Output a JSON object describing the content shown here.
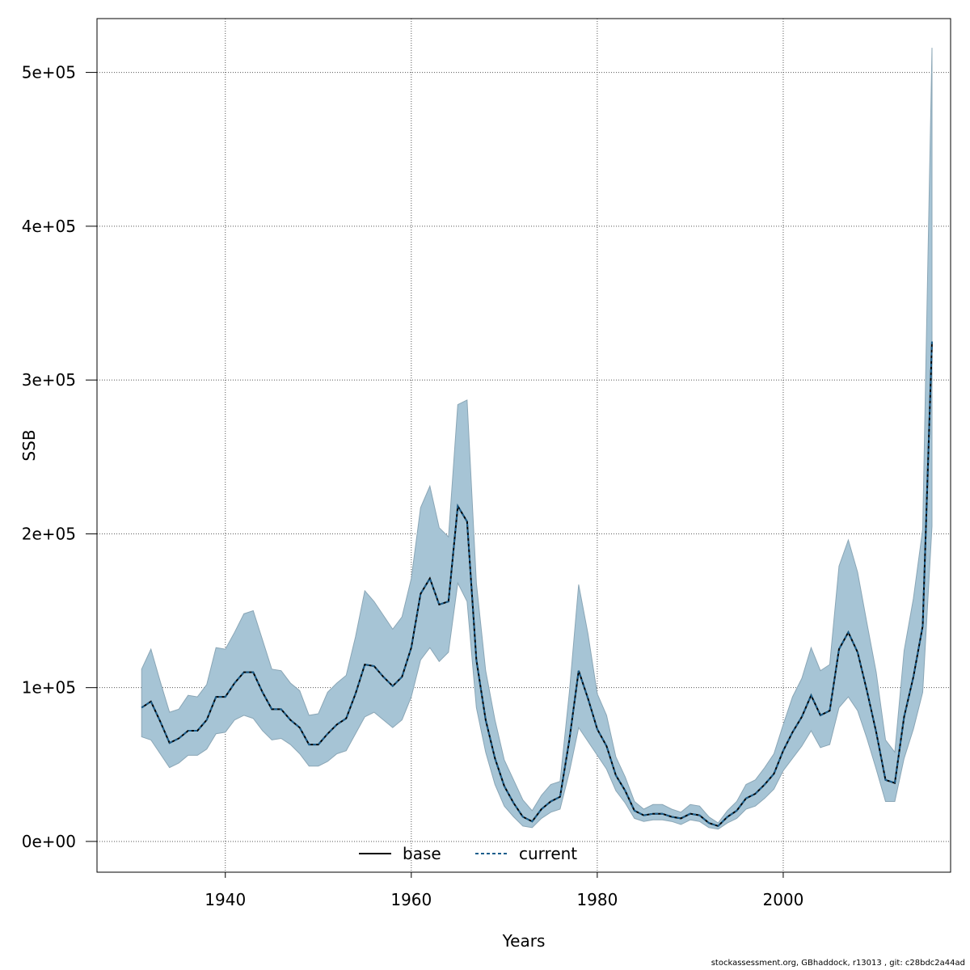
{
  "chart_data": {
    "type": "line",
    "title": "",
    "xlabel": "Years",
    "ylabel": "SSB",
    "xlim": [
      1926.2,
      2018.0
    ],
    "ylim": [
      -20000,
      535000
    ],
    "x_ticks": [
      1940,
      1960,
      1980,
      2000
    ],
    "x_tick_labels": [
      "1940",
      "1960",
      "1980",
      "2000"
    ],
    "y_ticks": [
      0,
      100000,
      200000,
      300000,
      400000,
      500000
    ],
    "y_tick_labels": [
      "0e+00",
      "1e+05",
      "2e+05",
      "3e+05",
      "4e+05",
      "5e+05"
    ],
    "grid": true,
    "legend_position": "bottom",
    "x": [
      1931,
      1932,
      1933,
      1934,
      1935,
      1936,
      1937,
      1938,
      1939,
      1940,
      1941,
      1942,
      1943,
      1944,
      1945,
      1946,
      1947,
      1948,
      1949,
      1950,
      1951,
      1952,
      1953,
      1954,
      1955,
      1956,
      1957,
      1958,
      1959,
      1960,
      1961,
      1962,
      1963,
      1964,
      1965,
      1966,
      1967,
      1968,
      1969,
      1970,
      1971,
      1972,
      1973,
      1974,
      1975,
      1976,
      1977,
      1978,
      1979,
      1980,
      1981,
      1982,
      1983,
      1984,
      1985,
      1986,
      1987,
      1988,
      1989,
      1990,
      1991,
      1992,
      1993,
      1994,
      1995,
      1996,
      1997,
      1998,
      1999,
      2000,
      2001,
      2002,
      2003,
      2004,
      2005,
      2006,
      2007,
      2008,
      2009,
      2010,
      2011,
      2012,
      2013,
      2014,
      2015,
      2016
    ],
    "band": {
      "color": "#a6c4d5",
      "lower": [
        68000,
        66000,
        57000,
        48000,
        51000,
        56000,
        56000,
        60000,
        70000,
        71000,
        79000,
        82000,
        80000,
        72000,
        66000,
        67000,
        63000,
        57000,
        49000,
        49000,
        52000,
        57000,
        59000,
        70000,
        81000,
        84000,
        79000,
        74000,
        79000,
        94000,
        118000,
        126000,
        117000,
        123000,
        168000,
        156000,
        87000,
        58000,
        37000,
        23000,
        16000,
        10000,
        9000,
        15000,
        19000,
        21000,
        45000,
        74000,
        65000,
        56000,
        47000,
        33000,
        25000,
        15000,
        13000,
        14000,
        14000,
        13000,
        11000,
        14000,
        13000,
        9000,
        8000,
        12000,
        15000,
        21000,
        23000,
        28000,
        34000,
        46000,
        54000,
        62000,
        72000,
        61000,
        63000,
        87000,
        94000,
        85000,
        67000,
        47000,
        26000,
        26000,
        54000,
        73000,
        97000,
        205000
      ],
      "upper": [
        112000,
        125000,
        104000,
        84000,
        86000,
        95000,
        94000,
        102000,
        126000,
        125000,
        136000,
        148000,
        150000,
        131000,
        112000,
        111000,
        103000,
        98000,
        82000,
        83000,
        97000,
        103000,
        108000,
        133000,
        163000,
        156000,
        147000,
        138000,
        146000,
        171000,
        217000,
        231000,
        204000,
        198000,
        284000,
        287000,
        168000,
        111000,
        79000,
        53000,
        40000,
        27000,
        20000,
        30000,
        37000,
        39000,
        97000,
        167000,
        135000,
        96000,
        82000,
        55000,
        42000,
        26000,
        21000,
        24000,
        24000,
        21000,
        19000,
        24000,
        23000,
        16000,
        12000,
        20000,
        26000,
        37000,
        40000,
        48000,
        57000,
        76000,
        94000,
        106000,
        126000,
        111000,
        115000,
        179000,
        196000,
        175000,
        142000,
        110000,
        66000,
        58000,
        124000,
        158000,
        203000,
        516000
      ]
    },
    "series": [
      {
        "name": "base",
        "color": "#000000",
        "dash": "none",
        "values": [
          87000,
          91000,
          78000,
          64000,
          67000,
          72000,
          72000,
          79000,
          94000,
          94000,
          103000,
          110000,
          110000,
          97000,
          86000,
          86000,
          79000,
          74000,
          63000,
          63000,
          70000,
          76000,
          80000,
          96000,
          115000,
          114000,
          107000,
          101000,
          107000,
          126000,
          161000,
          171000,
          154000,
          156000,
          218000,
          208000,
          118000,
          79000,
          54000,
          36000,
          25000,
          16000,
          13000,
          21000,
          26000,
          29000,
          66000,
          111000,
          93000,
          73000,
          62000,
          43000,
          33000,
          20000,
          17000,
          18000,
          18000,
          16000,
          15000,
          18000,
          17000,
          12000,
          10000,
          16000,
          20000,
          28000,
          31000,
          37000,
          44000,
          59000,
          71000,
          81000,
          95000,
          82000,
          85000,
          125000,
          136000,
          123000,
          98000,
          71000,
          40000,
          38000,
          81000,
          107000,
          140000,
          325000
        ]
      },
      {
        "name": "current",
        "color": "#1a5e8c",
        "dash": "4,3",
        "values": [
          87000,
          91000,
          78000,
          64000,
          67000,
          72000,
          72000,
          79000,
          94000,
          94000,
          103000,
          110000,
          110000,
          97000,
          86000,
          86000,
          79000,
          74000,
          63000,
          63000,
          70000,
          76000,
          80000,
          96000,
          115000,
          114000,
          107000,
          101000,
          107000,
          126000,
          161000,
          171000,
          154000,
          156000,
          218000,
          208000,
          118000,
          79000,
          54000,
          36000,
          25000,
          16000,
          13000,
          21000,
          26000,
          29000,
          66000,
          111000,
          93000,
          73000,
          62000,
          43000,
          33000,
          20000,
          17000,
          18000,
          18000,
          16000,
          15000,
          18000,
          17000,
          12000,
          10000,
          16000,
          20000,
          28000,
          31000,
          37000,
          44000,
          59000,
          71000,
          81000,
          95000,
          82000,
          85000,
          125000,
          136000,
          123000,
          98000,
          71000,
          40000,
          38000,
          81000,
          107000,
          140000,
          325000
        ]
      }
    ]
  },
  "footer_text": "stockassessment.org, GBhaddock, r13013 , git: c28bdc2a44ad"
}
